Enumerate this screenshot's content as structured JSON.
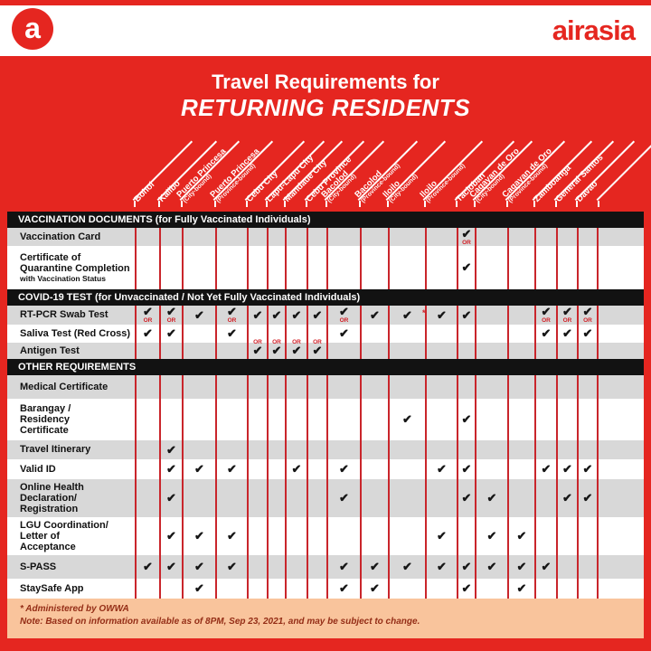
{
  "brand": {
    "logo_letter": "a",
    "wordmark": "airasia",
    "red": "#e52620"
  },
  "title": {
    "line1": "Travel Requirements for",
    "line2": "RETURNING RESIDENTS"
  },
  "destinations": [
    {
      "name": "Bohol",
      "sub": ""
    },
    {
      "name": "Kalibo",
      "sub": ""
    },
    {
      "name": "Puerto Princesa",
      "sub": "(City-bound)"
    },
    {
      "name": "Puerto Princesa",
      "sub": "(Province-bound)"
    },
    {
      "name": "Cebu City",
      "sub": ""
    },
    {
      "name": "Lapu-Lapu City",
      "sub": ""
    },
    {
      "name": "Mandaue City",
      "sub": ""
    },
    {
      "name": "Cebu Province",
      "sub": ""
    },
    {
      "name": "Bacolod",
      "sub": "(City-bound)"
    },
    {
      "name": "Bacolod",
      "sub": "(Province-bound)"
    },
    {
      "name": "Iloilo",
      "sub": "(City-bound)"
    },
    {
      "name": "Iloilo",
      "sub": "(Province-bound)"
    },
    {
      "name": "Tacloban",
      "sub": ""
    },
    {
      "name": "Cagayan de Oro",
      "sub": "(City-bound)"
    },
    {
      "name": "Cagayan de Oro",
      "sub": "(Province-bound)"
    },
    {
      "name": "Zamboanga",
      "sub": ""
    },
    {
      "name": "General Santos",
      "sub": ""
    },
    {
      "name": "Davao",
      "sub": ""
    }
  ],
  "legend": {
    "check": "✔",
    "or": "OR",
    "star": "*"
  },
  "sections": [
    {
      "header": "VACCINATION DOCUMENTS (for Fully Vaccinated Individuals)",
      "rows": [
        {
          "label": "Vaccination Card",
          "sublabel": "",
          "cells": [
            "",
            "",
            "",
            "",
            "",
            "",
            "",
            "",
            "",
            "",
            "",
            "",
            "co",
            "",
            "",
            "",
            "",
            ""
          ]
        },
        {
          "label": "Certificate of\nQuarantine Completion",
          "sublabel": "with Vaccination Status",
          "cells": [
            "",
            "",
            "",
            "",
            "",
            "",
            "",
            "",
            "",
            "",
            "",
            "",
            "c",
            "",
            "",
            "",
            "",
            ""
          ]
        }
      ]
    },
    {
      "header": "COVID-19 TEST (for Unvaccinated / Not Yet Fully Vaccinated Individuals)",
      "rows": [
        {
          "label": "RT-PCR Swab Test",
          "sublabel": "",
          "cells": [
            "co",
            "co",
            "c",
            "co",
            "c",
            "c",
            "c",
            "c",
            "co",
            "c",
            "c",
            "s",
            "c",
            "",
            "",
            "co",
            "co",
            "co"
          ]
        },
        {
          "label": "Saliva Test (Red Cross)",
          "sublabel": "",
          "cells": [
            "c",
            "c",
            "",
            "c",
            "o",
            "o",
            "o",
            "o",
            "c",
            "",
            "",
            "",
            "",
            "",
            "",
            "c",
            "c",
            "c"
          ]
        },
        {
          "label": "Antigen Test",
          "sublabel": "",
          "cells": [
            "",
            "",
            "",
            "",
            "c",
            "c",
            "c",
            "c",
            "",
            "",
            "",
            "",
            "",
            "",
            "",
            "",
            "",
            ""
          ]
        }
      ]
    },
    {
      "header": "OTHER REQUIREMENTS",
      "rows": [
        {
          "label": "Medical Certificate",
          "sublabel": "",
          "cells": [
            "",
            "",
            "",
            "",
            "",
            "",
            "",
            "",
            "",
            "",
            "",
            "",
            "",
            "",
            "",
            "",
            "",
            ""
          ]
        },
        {
          "label": "Barangay /\nResidency\nCertificate",
          "sublabel": "",
          "cells": [
            "",
            "",
            "",
            "",
            "",
            "",
            "",
            "",
            "",
            "",
            "c",
            "",
            "c",
            "",
            "",
            "",
            "",
            ""
          ]
        },
        {
          "label": "Travel Itinerary",
          "sublabel": "",
          "cells": [
            "",
            "c",
            "",
            "",
            "",
            "",
            "",
            "",
            "",
            "",
            "",
            "",
            "",
            "",
            "",
            "",
            "",
            ""
          ]
        },
        {
          "label": "Valid ID",
          "sublabel": "",
          "cells": [
            "",
            "c",
            "c",
            "c",
            "",
            "",
            "c",
            "",
            "c",
            "",
            "",
            "c",
            "c",
            "",
            "",
            "c",
            "c",
            "c"
          ]
        },
        {
          "label": "Online Health\nDeclaration/\nRegistration",
          "sublabel": "",
          "cells": [
            "",
            "c",
            "",
            "",
            "",
            "",
            "",
            "",
            "c",
            "",
            "",
            "",
            "c",
            "c",
            "",
            "",
            "c",
            "c"
          ]
        },
        {
          "label": "LGU Coordination/\nLetter of\nAcceptance",
          "sublabel": "",
          "cells": [
            "",
            "c",
            "c",
            "c",
            "",
            "",
            "",
            "",
            "",
            "",
            "",
            "c",
            "",
            "c",
            "c",
            "",
            "",
            ""
          ]
        },
        {
          "label": "S-PASS",
          "sublabel": "",
          "cells": [
            "c",
            "c",
            "c",
            "c",
            "",
            "",
            "",
            "",
            "c",
            "c",
            "c",
            "c",
            "c",
            "c",
            "c",
            "c",
            "",
            ""
          ]
        },
        {
          "label": "StaySafe App",
          "sublabel": "",
          "cells": [
            "",
            "",
            "c",
            "",
            "",
            "",
            "",
            "",
            "c",
            "c",
            "",
            "",
            "c",
            "",
            "c",
            "",
            "",
            ""
          ]
        }
      ]
    }
  ],
  "footer": {
    "line1": "* Administered by OWWA",
    "line2": "Note: Based on information available as of 8PM, Sep 23, 2021, and may be subject to change."
  }
}
